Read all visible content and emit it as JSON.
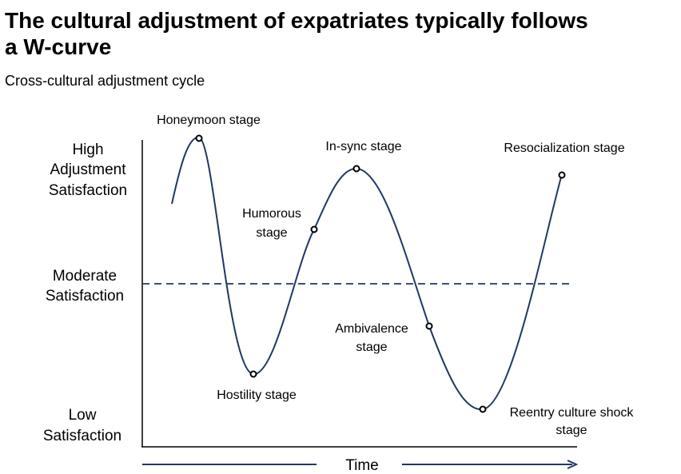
{
  "header": {
    "title": [
      "The cultural adjustment of expatriates typically follows",
      "a W-curve"
    ],
    "subtitle": "Cross-cultural adjustment cycle"
  },
  "y_axis": {
    "levels": [
      [
        "High",
        "Adjustment",
        "Satisfaction"
      ],
      [
        "Moderate",
        "Satisfaction"
      ],
      [
        "Low",
        "Satisfaction"
      ]
    ]
  },
  "x_axis": {
    "label": "Time"
  },
  "stages": [
    {
      "label": [
        "Honeymoon  stage"
      ]
    },
    {
      "label": [
        "Hostility stage"
      ]
    },
    {
      "label": [
        "Humorous",
        "stage"
      ]
    },
    {
      "label": [
        "In-sync stage"
      ]
    },
    {
      "label": [
        "Ambivalence",
        "stage"
      ]
    },
    {
      "label": [
        "Reentry culture shock",
        "stage"
      ]
    },
    {
      "label": [
        "Resocialization stage"
      ]
    }
  ]
}
